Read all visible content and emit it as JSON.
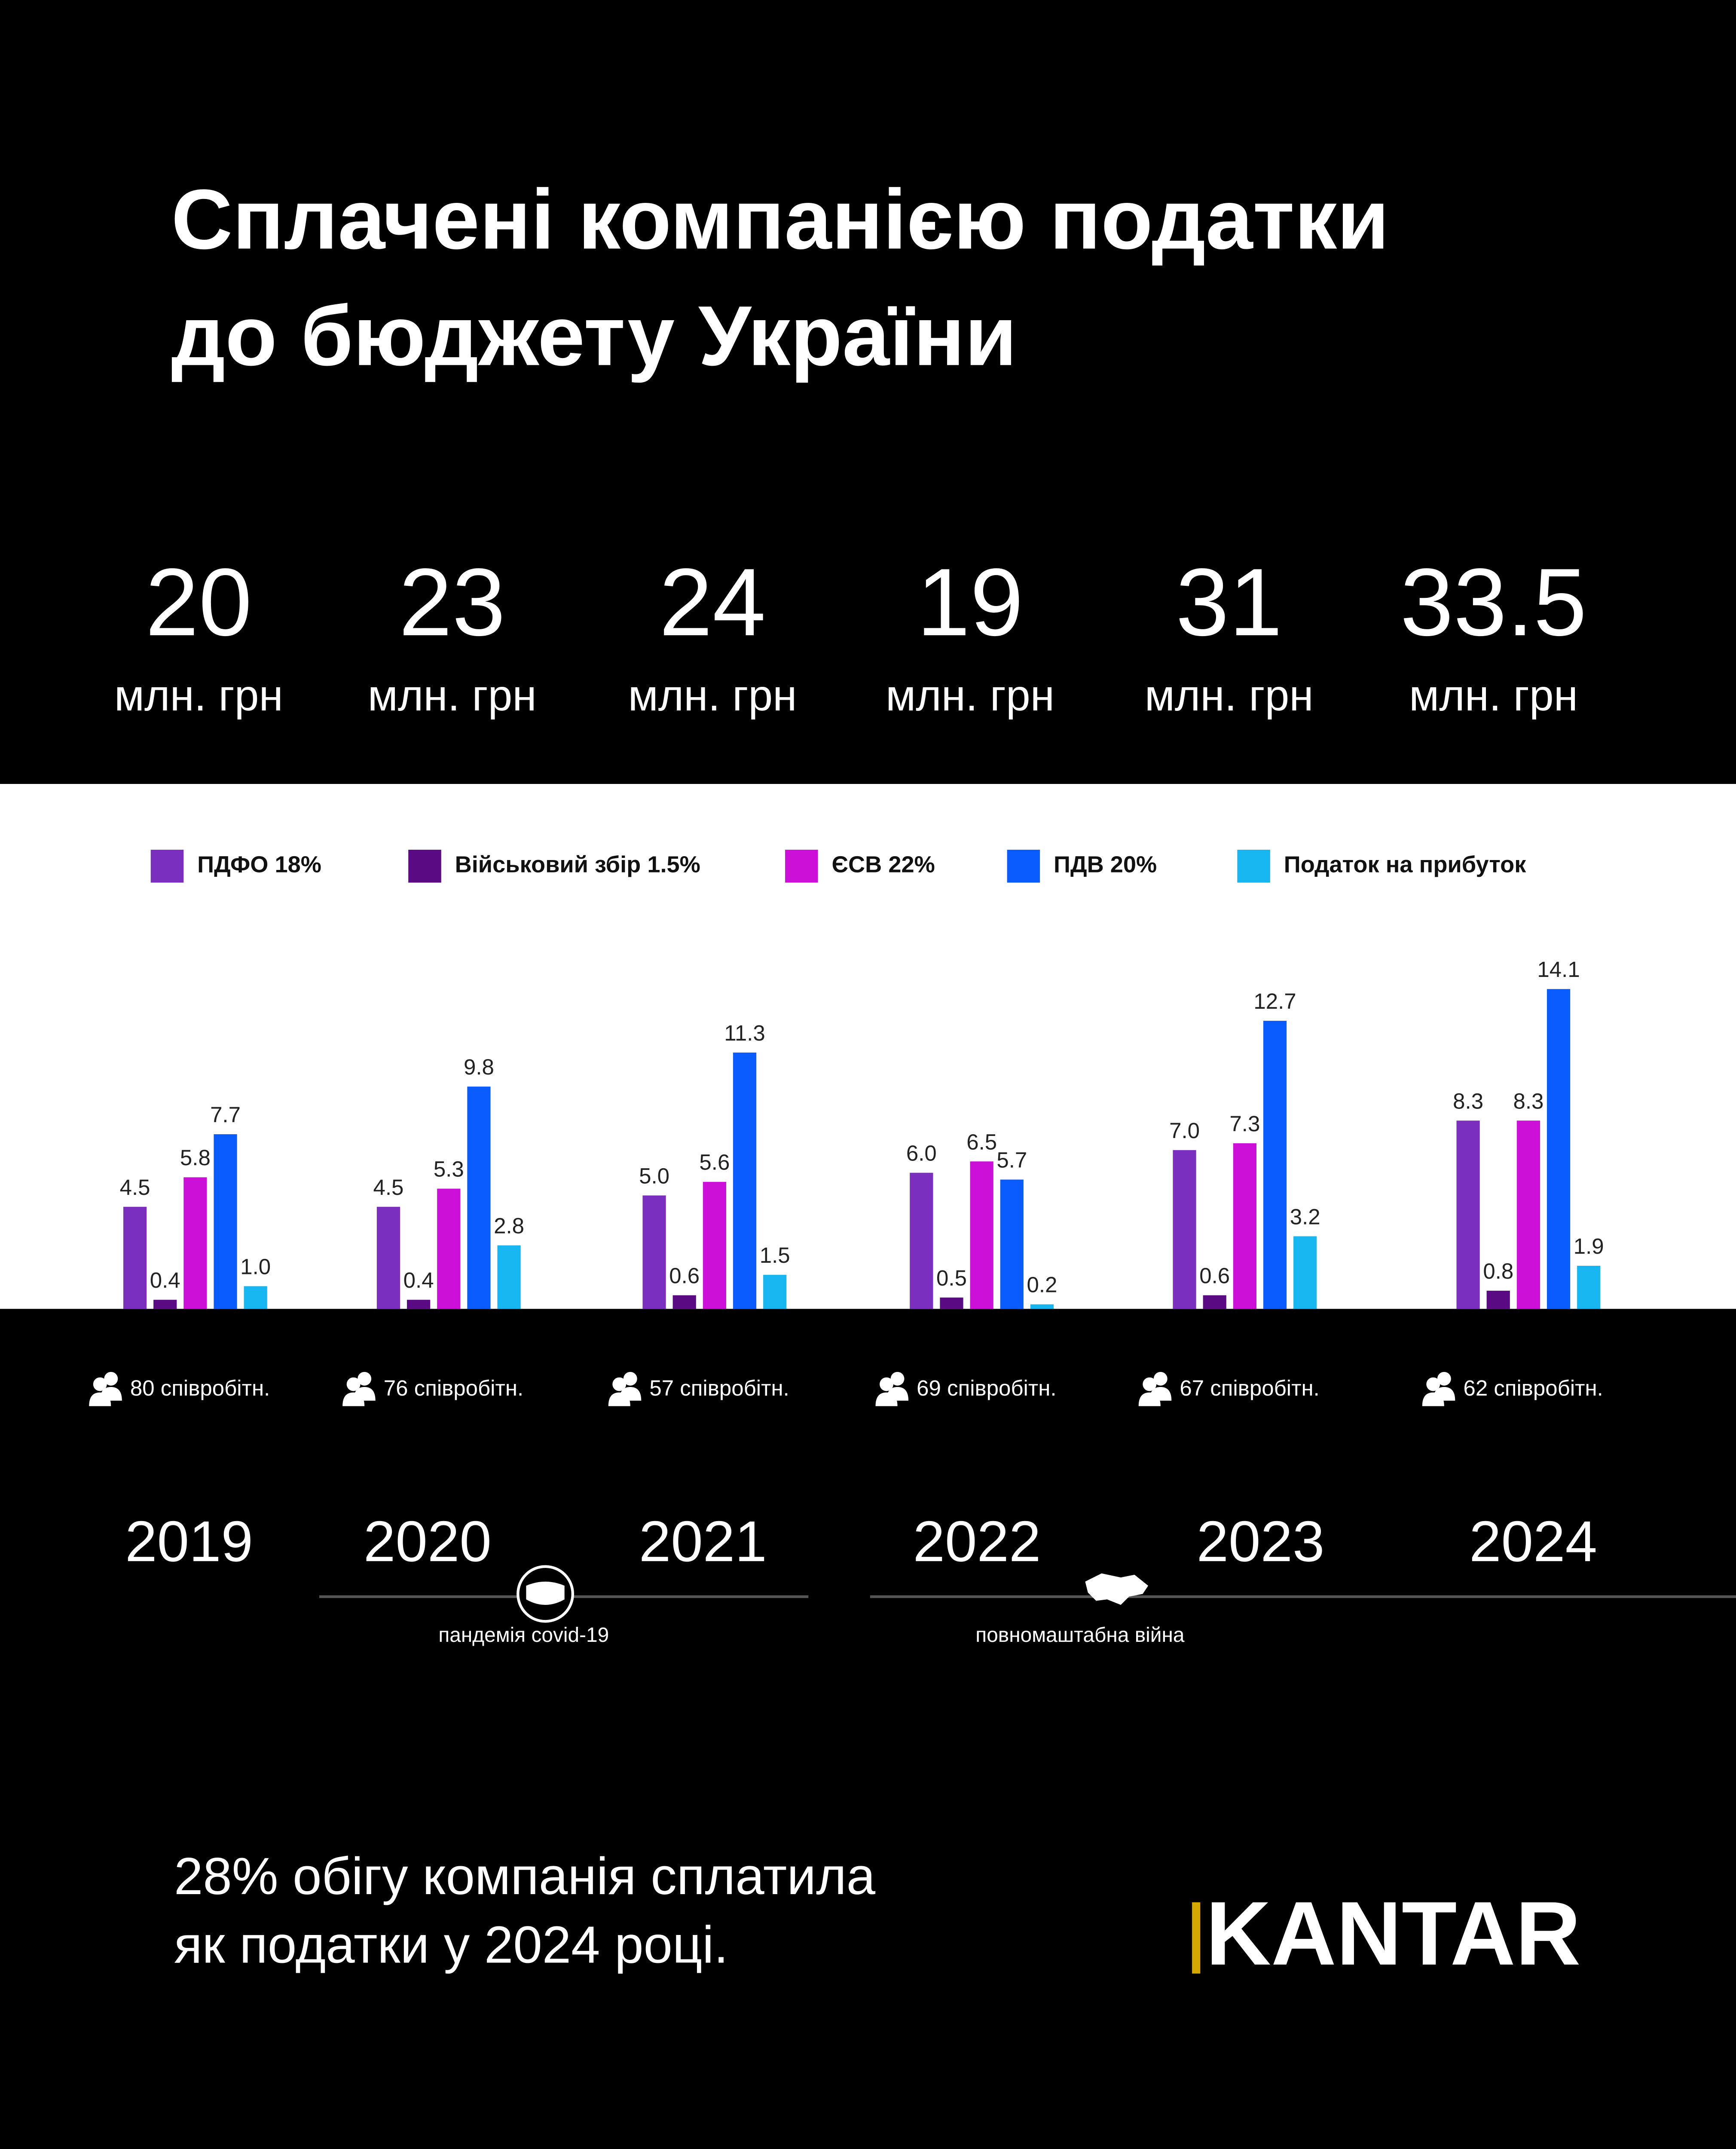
{
  "title_lines": [
    "Сплачені компанією податки",
    "до бюджету України"
  ],
  "totals": [
    20,
    23,
    24,
    19,
    31,
    33.5
  ],
  "totals_unit": "млн. грн",
  "employees": [
    "80 співробітн.",
    "76 співробітн.",
    "57 співробітн.",
    "69 співробітн.",
    "67 співробітн.",
    "62 співробітн."
  ],
  "chart_data": {
    "type": "bar",
    "categories": [
      "2019",
      "2020",
      "2021",
      "2022",
      "2023",
      "2024"
    ],
    "ylim": [
      0,
      16
    ],
    "legend": "top",
    "series": [
      {
        "name": "ПДФО 18%",
        "color": "#7b2fbe",
        "values": [
          4.5,
          4.5,
          5.0,
          6.0,
          7.0,
          8.3
        ],
        "value_labels": [
          "4.5",
          "4.5",
          "5.0",
          "6.0",
          "7.0",
          "8.3"
        ]
      },
      {
        "name": "Військовий збір 1.5%",
        "color": "#5a0a82",
        "values": [
          0.4,
          0.4,
          0.6,
          0.5,
          0.6,
          0.8
        ],
        "value_labels": [
          "0.4",
          "0.4",
          "0.6",
          "0.5",
          "0.6",
          "0.8"
        ]
      },
      {
        "name": "ЄСВ 22%",
        "color": "#cc10d8",
        "values": [
          5.8,
          5.3,
          5.6,
          6.5,
          7.3,
          8.3
        ],
        "value_labels": [
          "5.8",
          "5.3",
          "5.6",
          "6.5",
          "7.3",
          "8.3"
        ]
      },
      {
        "name": "ПДВ 20%",
        "color": "#0a5cff",
        "values": [
          7.7,
          9.8,
          11.3,
          5.7,
          12.7,
          14.1
        ],
        "value_labels": [
          "7.7",
          "9.8",
          "11.3",
          "5.7",
          "12.7",
          "14.1"
        ]
      },
      {
        "name": "Податок на прибуток",
        "color": "#17b6f0",
        "values": [
          1.0,
          2.8,
          1.5,
          0.2,
          3.2,
          1.9
        ],
        "value_labels": [
          "1.0",
          "2.8",
          "1.5",
          "0.2",
          "3.2",
          "1.9"
        ]
      }
    ],
    "annotations": [
      "пандемія covid-19",
      "повномаштабна війна"
    ]
  },
  "footer_lines": [
    "28% обігу компанія сплатила",
    "як податки у 2024 році."
  ],
  "logo": "KANTAR"
}
